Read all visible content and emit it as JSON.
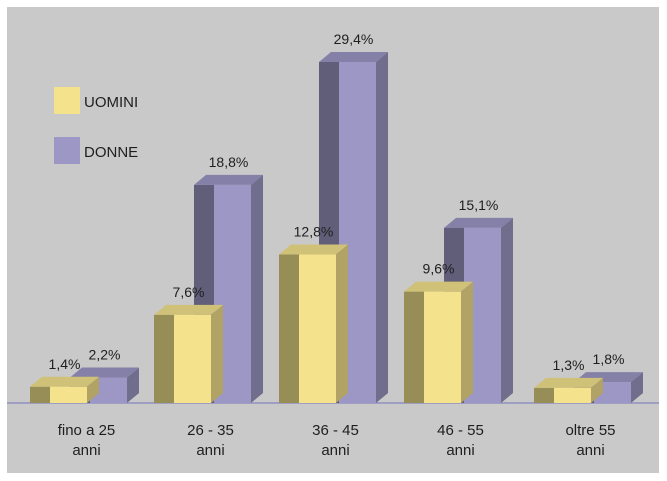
{
  "chart_data": {
    "type": "bar",
    "categories": [
      "fino a 25 anni",
      "26 - 35 anni",
      "36 - 45 anni",
      "46 - 55 anni",
      "oltre 55 anni"
    ],
    "category_lines": [
      [
        "fino a 25",
        "anni"
      ],
      [
        "26 - 35",
        "anni"
      ],
      [
        "36 - 45",
        "anni"
      ],
      [
        "46 - 55",
        "anni"
      ],
      [
        "oltre 55",
        "anni"
      ]
    ],
    "series": [
      {
        "name": "UOMINI",
        "values": [
          1.4,
          7.6,
          12.8,
          9.6,
          1.3
        ],
        "labels": [
          "1,4%",
          "7,6%",
          "12,8%",
          "9,6%",
          "1,3%"
        ],
        "color": "#f4e38c"
      },
      {
        "name": "DONNE",
        "values": [
          2.2,
          18.8,
          29.4,
          15.1,
          1.8
        ],
        "labels": [
          "2,2%",
          "18,8%",
          "29,4%",
          "15,1%",
          "1,8%"
        ],
        "color": "#9c97c4"
      }
    ],
    "ylim": [
      0,
      30
    ],
    "legend": "top-left",
    "grid": false,
    "style": "3d-bars",
    "background": "#c9c9c9"
  }
}
